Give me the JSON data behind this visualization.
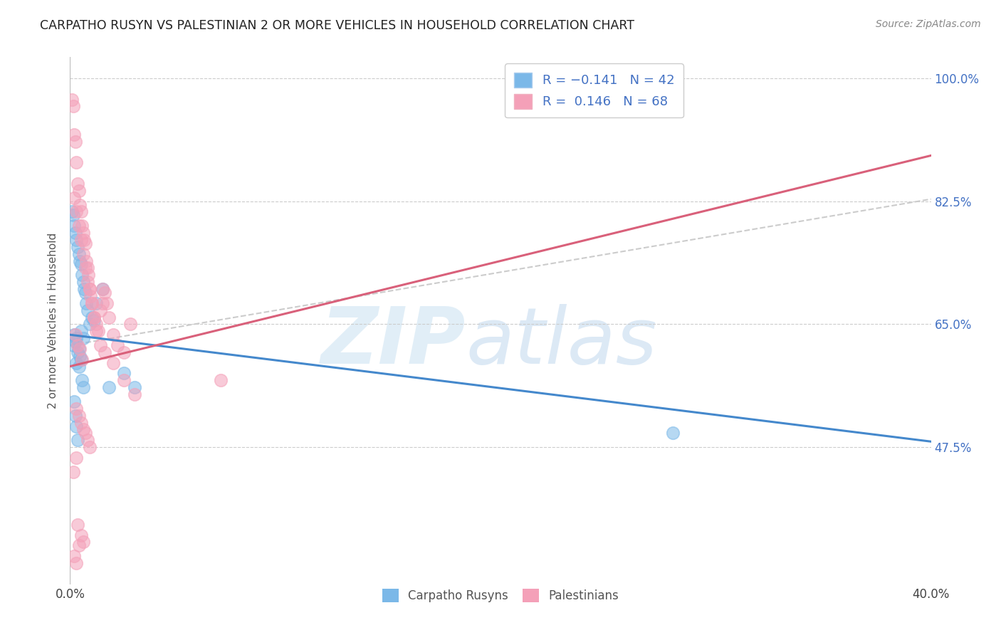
{
  "title": "CARPATHO RUSYN VS PALESTINIAN 2 OR MORE VEHICLES IN HOUSEHOLD CORRELATION CHART",
  "source": "Source: ZipAtlas.com",
  "ylabel": "2 or more Vehicles in Household",
  "carpatho_label": "Carpatho Rusyns",
  "palestinian_label": "Palestinians",
  "blue_color": "#7bb8e8",
  "pink_color": "#f4a0b8",
  "blue_line_color": "#4488cc",
  "pink_line_color": "#d9607a",
  "gray_dash_color": "#cccccc",
  "watermark_zip": "ZIP",
  "watermark_atlas": "atlas",
  "xlim": [
    0.0,
    40.0
  ],
  "ylim": [
    28.0,
    103.0
  ],
  "y_ticks": [
    47.5,
    65.0,
    82.5,
    100.0
  ],
  "y_tick_labels": [
    "47.5%",
    "65.0%",
    "82.5%",
    "100.0%"
  ],
  "blue_intercept": 63.5,
  "blue_slope": -0.38,
  "pink_intercept": 59.0,
  "pink_slope": 0.75,
  "gray_intercept": 62.0,
  "gray_slope": 0.52,
  "blue_x": [
    0.1,
    0.15,
    0.2,
    0.25,
    0.3,
    0.35,
    0.4,
    0.45,
    0.5,
    0.55,
    0.6,
    0.65,
    0.7,
    0.75,
    0.8,
    0.9,
    1.0,
    1.1,
    1.2,
    1.5,
    0.2,
    0.3,
    0.25,
    0.15,
    0.4,
    0.35,
    0.45,
    0.5,
    0.3,
    0.4,
    0.55,
    0.6,
    0.2,
    0.25,
    0.3,
    0.35,
    1.8,
    2.5,
    3.0,
    28.0,
    0.5,
    0.6
  ],
  "blue_y": [
    81.0,
    80.5,
    79.0,
    78.0,
    77.0,
    76.0,
    75.0,
    74.0,
    73.5,
    72.0,
    71.0,
    70.0,
    69.5,
    68.0,
    67.0,
    65.0,
    66.0,
    65.5,
    68.0,
    70.0,
    63.5,
    63.0,
    62.5,
    62.0,
    61.5,
    61.0,
    60.5,
    60.0,
    59.5,
    59.0,
    57.0,
    56.0,
    54.0,
    52.0,
    50.5,
    48.5,
    56.0,
    58.0,
    56.0,
    49.5,
    64.0,
    63.0
  ],
  "pink_x": [
    0.1,
    0.15,
    0.2,
    0.25,
    0.3,
    0.35,
    0.4,
    0.45,
    0.5,
    0.55,
    0.6,
    0.65,
    0.7,
    0.75,
    0.8,
    0.85,
    0.9,
    0.95,
    1.0,
    1.1,
    1.2,
    1.3,
    1.4,
    1.5,
    1.6,
    1.7,
    1.8,
    2.0,
    2.2,
    2.5,
    0.2,
    0.3,
    0.4,
    0.5,
    0.6,
    0.7,
    0.8,
    0.9,
    1.0,
    1.1,
    1.2,
    1.4,
    1.6,
    2.0,
    2.5,
    3.0,
    0.25,
    0.35,
    0.45,
    0.55,
    0.3,
    0.4,
    0.5,
    0.6,
    0.7,
    0.8,
    0.9,
    0.3,
    0.15,
    7.0,
    0.35,
    0.5,
    0.6,
    0.4,
    0.2,
    0.3,
    1.5,
    2.8
  ],
  "pink_y": [
    97.0,
    96.0,
    92.0,
    91.0,
    88.0,
    85.0,
    84.0,
    82.0,
    81.0,
    79.0,
    78.0,
    77.0,
    76.5,
    74.0,
    73.0,
    72.0,
    70.0,
    69.0,
    68.0,
    66.0,
    65.0,
    64.0,
    67.0,
    70.0,
    69.5,
    68.0,
    66.0,
    63.5,
    62.0,
    61.0,
    83.0,
    81.0,
    79.0,
    77.0,
    75.0,
    73.0,
    71.0,
    70.0,
    68.0,
    66.0,
    64.0,
    62.0,
    61.0,
    59.5,
    57.0,
    55.0,
    63.5,
    62.0,
    61.5,
    60.0,
    53.0,
    52.0,
    51.0,
    50.0,
    49.5,
    48.5,
    47.5,
    46.0,
    44.0,
    57.0,
    36.5,
    35.0,
    34.0,
    33.5,
    32.0,
    31.0,
    68.0,
    65.0
  ]
}
